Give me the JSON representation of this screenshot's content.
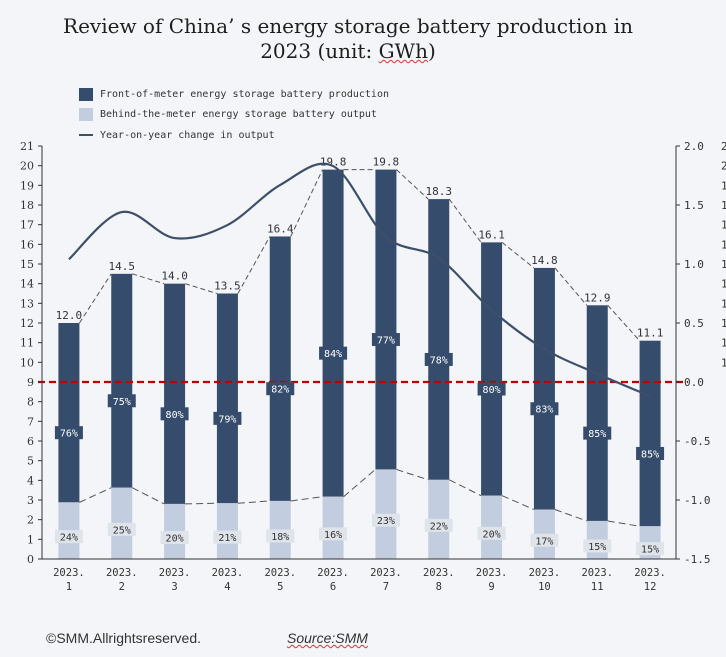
{
  "title": {
    "line1": "Review of China’ s energy storage battery production in",
    "line2_prefix": "2023 (unit: ",
    "line2_unit": "GWh",
    "line2_suffix": ")"
  },
  "legend": [
    {
      "label": "Front-of-meter energy storage battery production",
      "type": "bar",
      "color": "#364c6c"
    },
    {
      "label": "Behind-the-meter energy storage battery output",
      "type": "bar",
      "color": "#c3cde0"
    },
    {
      "label": "Year-on-year change in output",
      "type": "line",
      "color": "#3d4f6b"
    }
  ],
  "footer": {
    "copyright": "©SMM.Allrightsreserved.",
    "source": "Source:SMM"
  },
  "chart_data": {
    "type": "bar",
    "title": "Review of China’ s energy storage battery production in 2023 (unit: GWh)",
    "xlabel": "",
    "ylabel": "",
    "categories": [
      "2023.\n1",
      "2023.\n2",
      "2023.\n3",
      "2023.\n4",
      "2023.\n5",
      "2023.\n6",
      "2023.\n7",
      "2023.\n8",
      "2023.\n9",
      "2023.\n10",
      "2023.\n11",
      "2023.\n12"
    ],
    "category_lines": [
      [
        "2023.",
        "1"
      ],
      [
        "2023.",
        "2"
      ],
      [
        "2023.",
        "3"
      ],
      [
        "2023.",
        "4"
      ],
      [
        "2023.",
        "5"
      ],
      [
        "2023.",
        "6"
      ],
      [
        "2023.",
        "7"
      ],
      [
        "2023.",
        "8"
      ],
      [
        "2023.",
        "9"
      ],
      [
        "2023.",
        "10"
      ],
      [
        "2023.",
        "11"
      ],
      [
        "2023.",
        "12"
      ]
    ],
    "totals": [
      12.0,
      14.5,
      14.0,
      13.5,
      16.4,
      19.8,
      19.8,
      18.3,
      16.1,
      14.8,
      12.9,
      11.1
    ],
    "total_labels": [
      "12.0",
      "14.5",
      "14.0",
      "13.5",
      "16.4",
      "19.8",
      "19.8",
      "18.3",
      "16.1",
      "14.8",
      "12.9",
      "11.1"
    ],
    "series": [
      {
        "name": "Front-of-meter energy storage battery production",
        "kind": "stacked-bar",
        "color": "#364c6c",
        "share_pct": [
          76,
          75,
          80,
          79,
          82,
          84,
          77,
          78,
          80,
          83,
          85,
          85
        ],
        "share_labels": [
          "76%",
          "75%",
          "80%",
          "79%",
          "82%",
          "84%",
          "77%",
          "78%",
          "80%",
          "83%",
          "85%",
          "85%"
        ]
      },
      {
        "name": "Behind-the-meter energy storage battery output",
        "kind": "stacked-bar",
        "color": "#c3cde0",
        "share_pct": [
          24,
          25,
          20,
          21,
          18,
          16,
          23,
          22,
          20,
          17,
          15,
          15
        ],
        "share_labels": [
          "24%",
          "25%",
          "20%",
          "21%",
          "18%",
          "16%",
          "23%",
          "22%",
          "20%",
          "17%",
          "15%",
          "15%"
        ]
      },
      {
        "name": "Year-on-year change in output",
        "kind": "line",
        "axis": "right",
        "color": "#3d4f6b",
        "values": [
          1.04,
          1.44,
          1.22,
          1.33,
          1.67,
          1.83,
          1.23,
          1.05,
          0.61,
          0.28,
          0.07,
          -0.12
        ]
      }
    ],
    "y_left": {
      "min": 0,
      "max": 21,
      "ticks": [
        "0",
        "1",
        "2",
        "3",
        "4",
        "5",
        "6",
        "7",
        "8",
        "9",
        "10",
        "11",
        "12",
        "13",
        "14",
        "15",
        "16",
        "17",
        "18",
        "19",
        "20",
        "21"
      ]
    },
    "y_right": {
      "min": -1.5,
      "max": 2.0,
      "ticks": [
        "-1.5",
        "-1.0",
        "-0.5",
        "0.0",
        "0.5",
        "1.0",
        "1.5",
        "2.0"
      ]
    },
    "y_right_clipped_ticks": [
      "2",
      "2",
      "1",
      "1",
      "1",
      "1",
      "1",
      "1",
      "1",
      "1",
      "1",
      "1"
    ],
    "reference_line": {
      "axis": "right",
      "value": 0.0,
      "color": "#c00000",
      "style": "dashed"
    },
    "grid": false,
    "legend_position": "top-left"
  }
}
